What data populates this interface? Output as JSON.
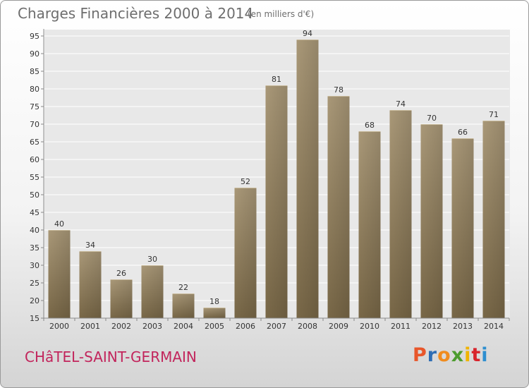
{
  "header": {
    "title": "Charges Financières 2000 à 2014",
    "subtitle": "(en milliers d'€)"
  },
  "footer": {
    "commune": "CHâTEL-SAINT-GERMAIN",
    "logo": "Proxiti",
    "logo_colors": [
      "#e8562a",
      "#2e6db4",
      "#f08c1e",
      "#4c9c2e",
      "#f0b400",
      "#d8242c",
      "#2e8fd0"
    ]
  },
  "colors": {
    "bar_light": "#a99878",
    "bar_dark": "#786747",
    "plot_bg": "#e8e8e8",
    "grid": "#ffffff",
    "text": "#333333",
    "commune": "#c2255c"
  },
  "chart_data": {
    "type": "bar",
    "title": "Charges Financières 2000 à 2014",
    "subtitle": "(en milliers d'€)",
    "xlabel": "",
    "ylabel": "",
    "categories": [
      "2000",
      "2001",
      "2002",
      "2003",
      "2004",
      "2005",
      "2006",
      "2007",
      "2008",
      "2009",
      "2010",
      "2011",
      "2012",
      "2013",
      "2014"
    ],
    "values": [
      40,
      34,
      26,
      30,
      22,
      18,
      52,
      81,
      94,
      78,
      68,
      74,
      70,
      66,
      71
    ],
    "ylim": [
      15,
      97
    ],
    "yticks": [
      15,
      20,
      25,
      30,
      35,
      40,
      45,
      50,
      55,
      60,
      65,
      70,
      75,
      80,
      85,
      90,
      95
    ],
    "grid": true,
    "legend": "none"
  }
}
